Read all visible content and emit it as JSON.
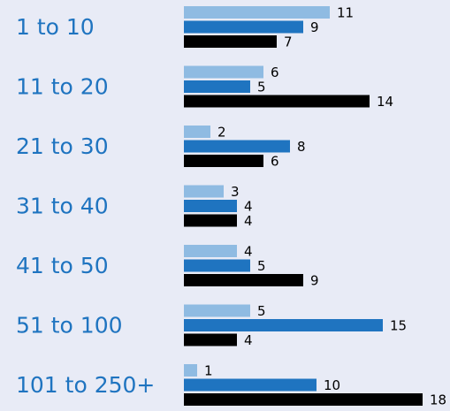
{
  "chart_data": {
    "type": "bar",
    "orientation": "horizontal",
    "categories": [
      "1 to 10",
      "11 to 20",
      "21 to 30",
      "31 to 40",
      "41 to 50",
      "51 to 100",
      "101 to 250+"
    ],
    "series": [
      {
        "color": "#8fbbe2",
        "values": [
          11,
          6,
          2,
          3,
          4,
          5,
          1
        ]
      },
      {
        "color": "#1f74c0",
        "values": [
          9,
          5,
          8,
          4,
          5,
          15,
          10
        ]
      },
      {
        "color": "#000000",
        "values": [
          7,
          14,
          6,
          4,
          9,
          4,
          18
        ]
      }
    ]
  }
}
